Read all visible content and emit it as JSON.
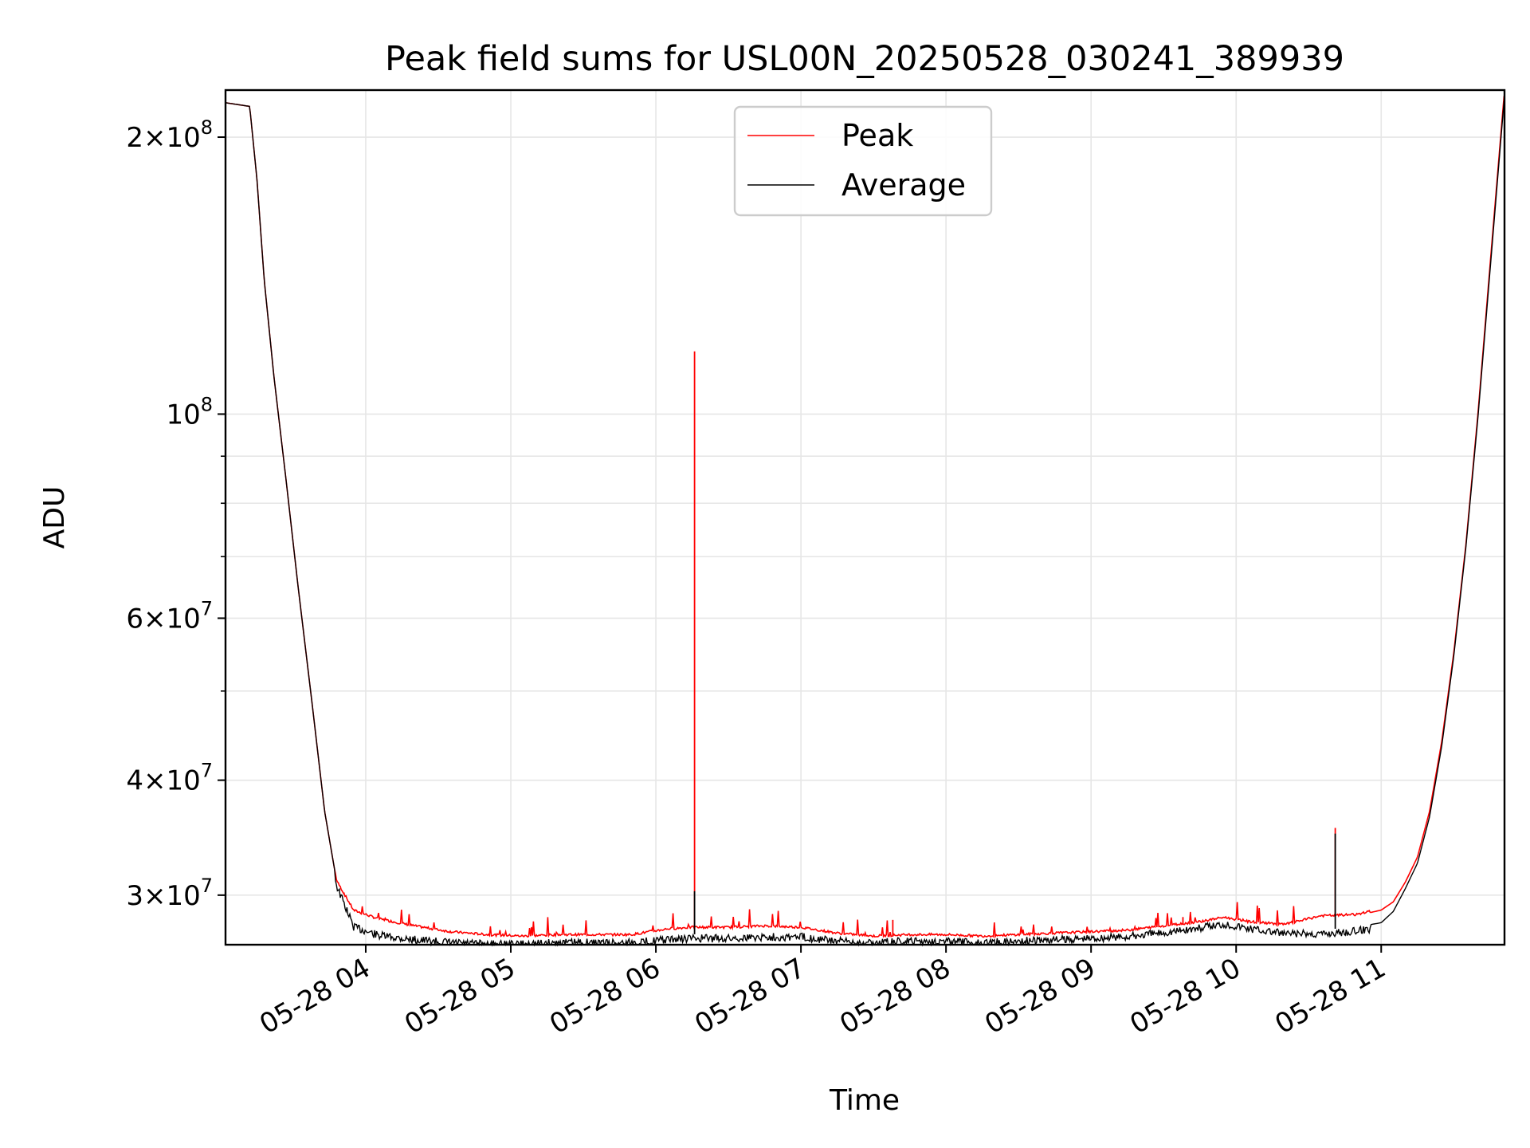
{
  "chart_data": {
    "type": "line",
    "title": "Peak field sums for USL00N_20250528_030241_389939",
    "xlabel": "Time",
    "ylabel": "ADU",
    "yscale": "log",
    "ylim": [
      26500000,
      225000000
    ],
    "xlim": [
      "2025-05-28 03:02",
      "2025-05-28 11:51"
    ],
    "grid": true,
    "legend": "upper center",
    "x_ticks": [
      "05-28 04",
      "05-28 05",
      "05-28 06",
      "05-28 07",
      "05-28 08",
      "05-28 09",
      "05-28 10",
      "05-28 11"
    ],
    "y_ticks": [
      {
        "value": 30000000,
        "base": "3",
        "exp": "7"
      },
      {
        "value": 40000000,
        "base": "4",
        "exp": "7"
      },
      {
        "value": 60000000,
        "base": "6",
        "exp": "7"
      },
      {
        "value": 100000000,
        "base": "",
        "exp": "8"
      },
      {
        "value": 200000000,
        "base": "2",
        "exp": "8"
      }
    ],
    "series": [
      {
        "name": "Peak",
        "color": "#ff0000",
        "x": [
          "2025-05-28 03:02",
          "2025-05-28 03:12",
          "2025-05-28 03:15",
          "2025-05-28 03:18",
          "2025-05-28 03:22",
          "2025-05-28 03:27",
          "2025-05-28 03:32",
          "2025-05-28 03:38",
          "2025-05-28 03:43",
          "2025-05-28 03:48",
          "2025-05-28 03:55",
          "2025-05-28 04:05",
          "2025-05-28 04:20",
          "2025-05-28 04:35",
          "2025-05-28 04:50",
          "2025-05-28 05:05",
          "2025-05-28 05:20",
          "2025-05-28 05:35",
          "2025-05-28 05:50",
          "2025-05-28 06:05",
          "2025-05-28 06:15",
          "2025-05-28 06:30",
          "2025-05-28 06:45",
          "2025-05-28 07:00",
          "2025-05-28 07:15",
          "2025-05-28 07:30",
          "2025-05-28 07:45",
          "2025-05-28 08:00",
          "2025-05-28 08:15",
          "2025-05-28 08:30",
          "2025-05-28 08:45",
          "2025-05-28 09:00",
          "2025-05-28 09:15",
          "2025-05-28 09:30",
          "2025-05-28 09:45",
          "2025-05-28 09:55",
          "2025-05-28 10:05",
          "2025-05-28 10:20",
          "2025-05-28 10:35",
          "2025-05-28 10:50",
          "2025-05-28 11:00",
          "2025-05-28 11:05",
          "2025-05-28 11:10",
          "2025-05-28 11:15",
          "2025-05-28 11:20",
          "2025-05-28 11:25",
          "2025-05-28 11:30",
          "2025-05-28 11:35",
          "2025-05-28 11:40",
          "2025-05-28 11:45",
          "2025-05-28 11:51"
        ],
        "y": [
          218000000,
          216000000,
          180000000,
          140000000,
          110000000,
          85000000,
          65000000,
          48000000,
          37000000,
          31000000,
          28800000,
          28200000,
          27700000,
          27300000,
          27100000,
          27000000,
          27100000,
          27100000,
          27100000,
          27500000,
          27600000,
          27600000,
          27700000,
          27600000,
          27200000,
          27000000,
          27100000,
          27100000,
          27000000,
          27100000,
          27200000,
          27300000,
          27400000,
          27700000,
          28000000,
          28300000,
          28000000,
          27800000,
          28400000,
          28500000,
          28900000,
          29500000,
          31000000,
          33000000,
          37000000,
          44000000,
          55000000,
          72000000,
          100000000,
          145000000,
          225000000
        ],
        "spikes": [
          {
            "x": "2025-05-28 06:16",
            "y": 117000000
          },
          {
            "x": "2025-05-28 10:41",
            "y": 35500000
          },
          {
            "x": "2025-05-28 03:51",
            "y": 30200000
          },
          {
            "x": "2025-05-28 07:38",
            "y": 28200000
          },
          {
            "x": "2025-05-28 09:38",
            "y": 28400000
          }
        ]
      },
      {
        "name": "Average",
        "color": "#000000",
        "x": [
          "2025-05-28 03:02",
          "2025-05-28 03:12",
          "2025-05-28 03:15",
          "2025-05-28 03:18",
          "2025-05-28 03:22",
          "2025-05-28 03:27",
          "2025-05-28 03:32",
          "2025-05-28 03:38",
          "2025-05-28 03:43",
          "2025-05-28 03:48",
          "2025-05-28 03:55",
          "2025-05-28 04:05",
          "2025-05-28 04:20",
          "2025-05-28 04:35",
          "2025-05-28 04:50",
          "2025-05-28 05:05",
          "2025-05-28 05:20",
          "2025-05-28 05:35",
          "2025-05-28 05:50",
          "2025-05-28 06:05",
          "2025-05-28 06:15",
          "2025-05-28 06:30",
          "2025-05-28 06:45",
          "2025-05-28 07:00",
          "2025-05-28 07:15",
          "2025-05-28 07:30",
          "2025-05-28 07:45",
          "2025-05-28 08:00",
          "2025-05-28 08:15",
          "2025-05-28 08:30",
          "2025-05-28 08:45",
          "2025-05-28 09:00",
          "2025-05-28 09:15",
          "2025-05-28 09:30",
          "2025-05-28 09:45",
          "2025-05-28 09:55",
          "2025-05-28 10:05",
          "2025-05-28 10:20",
          "2025-05-28 10:35",
          "2025-05-28 10:50",
          "2025-05-28 11:00",
          "2025-05-28 11:05",
          "2025-05-28 11:10",
          "2025-05-28 11:15",
          "2025-05-28 11:20",
          "2025-05-28 11:25",
          "2025-05-28 11:30",
          "2025-05-28 11:35",
          "2025-05-28 11:40",
          "2025-05-28 11:45",
          "2025-05-28 11:51"
        ],
        "y": [
          218000000,
          216000000,
          180000000,
          140000000,
          110000000,
          85000000,
          65000000,
          48000000,
          37000000,
          31000000,
          28000000,
          27400000,
          27100000,
          26900000,
          26800000,
          26800000,
          26900000,
          26900000,
          26900000,
          27100000,
          27200000,
          27200000,
          27300000,
          27300000,
          27000000,
          26900000,
          27000000,
          27000000,
          26900000,
          27000000,
          27100000,
          27200000,
          27300000,
          27600000,
          27900000,
          28200000,
          27900000,
          27500000,
          27500000,
          27700000,
          28000000,
          28800000,
          30500000,
          32500000,
          36500000,
          43500000,
          54500000,
          71500000,
          99000000,
          143000000,
          222000000
        ],
        "spikes": [
          {
            "x": "2025-05-28 06:16",
            "y": 30300000
          },
          {
            "x": "2025-05-28 10:41",
            "y": 35000000
          }
        ]
      }
    ]
  }
}
